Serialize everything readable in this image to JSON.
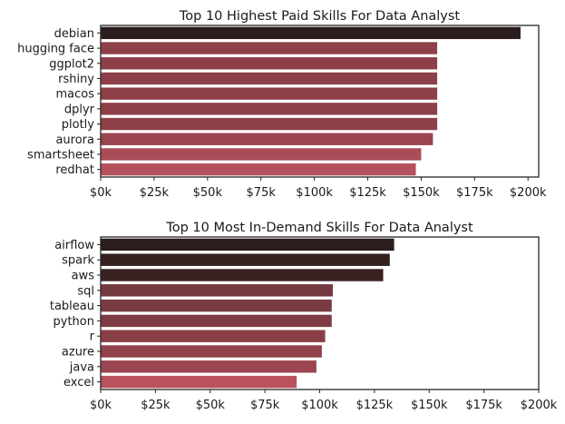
{
  "chart_data": [
    {
      "type": "bar",
      "orientation": "horizontal",
      "title": "Top 10 Highest Paid Skills For Data Analyst",
      "xlabel": "",
      "ylabel": "",
      "categories": [
        "debian",
        "hugging face",
        "ggplot2",
        "rshiny",
        "macos",
        "dplyr",
        "plotly",
        "aurora",
        "smartsheet",
        "redhat"
      ],
      "values": [
        196500,
        157500,
        157500,
        157500,
        157500,
        157500,
        157500,
        155500,
        150000,
        147500
      ],
      "xlim": [
        0,
        205000
      ],
      "xticks": [
        0,
        25000,
        50000,
        75000,
        100000,
        125000,
        150000,
        175000,
        200000
      ],
      "xtick_labels": [
        "$0k",
        "$25k",
        "$50k",
        "$75k",
        "$100k",
        "$125k",
        "$150k",
        "$175k",
        "$200k"
      ],
      "colors": [
        "#2b1d1e",
        "#8e4049",
        "#8e4049",
        "#8e4049",
        "#8e4049",
        "#8e4049",
        "#8e4049",
        "#9a4550",
        "#ab4d58",
        "#b6525d"
      ],
      "grid": false
    },
    {
      "type": "bar",
      "orientation": "horizontal",
      "title": "Top 10 Most In-Demand Skills For Data Analyst",
      "xlabel": "",
      "ylabel": "",
      "categories": [
        "airflow",
        "spark",
        "aws",
        "sql",
        "tableau",
        "python",
        "r",
        "azure",
        "java",
        "excel"
      ],
      "values": [
        134000,
        132000,
        129000,
        106000,
        105500,
        105500,
        102500,
        101000,
        98500,
        89500
      ],
      "xlim": [
        0,
        200000
      ],
      "xticks": [
        0,
        25000,
        50000,
        75000,
        100000,
        125000,
        150000,
        175000,
        200000
      ],
      "xtick_labels": [
        "$0k",
        "$25k",
        "$50k",
        "$75k",
        "$100k",
        "$125k",
        "$150k",
        "$175k",
        "$200k"
      ],
      "colors": [
        "#2b1d1e",
        "#33201f",
        "#3a2223",
        "#753a40",
        "#7a3b42",
        "#7d3c43",
        "#8a3f47",
        "#92424b",
        "#9b4650",
        "#b9525d"
      ],
      "grid": false
    }
  ]
}
